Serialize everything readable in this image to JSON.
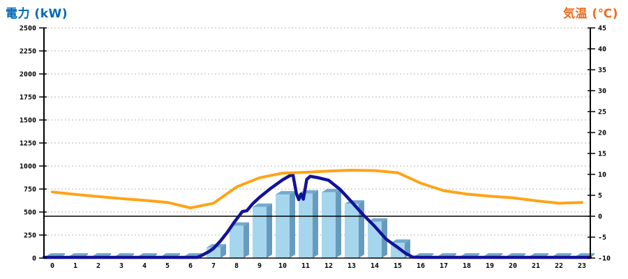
{
  "chart_data": {
    "type": "combo",
    "title_left": "電力 (kW)",
    "title_right": "気温 (℃)",
    "x_labels": [
      "0",
      "1",
      "2",
      "3",
      "4",
      "5",
      "6",
      "7",
      "8",
      "9",
      "10",
      "11",
      "12",
      "13",
      "14",
      "15",
      "16",
      "17",
      "18",
      "19",
      "20",
      "21",
      "22",
      "23"
    ],
    "left_axis": {
      "label": "電力 (kW)",
      "min": 0,
      "max": 2500,
      "step": 250,
      "ticks": [
        "0",
        "250",
        "500",
        "750",
        "1000",
        "1250",
        "1500",
        "1750",
        "2000",
        "2250",
        "2500"
      ]
    },
    "right_axis": {
      "label": "気温 (℃)",
      "min": -10,
      "max": 45,
      "step": 5,
      "ticks": [
        "-10",
        "-5",
        "0",
        "5",
        "10",
        "15",
        "20",
        "25",
        "30",
        "35",
        "40",
        "45"
      ],
      "zero_reference_line": 0
    },
    "grid": {
      "horizontal_dashed": true,
      "follows": "left_axis"
    },
    "legend": "none",
    "series": [
      {
        "name": "power-bars",
        "type": "bar3d",
        "axis": "left",
        "x": [
          0,
          1,
          2,
          3,
          4,
          5,
          6,
          7,
          8,
          9,
          10,
          11,
          12,
          13,
          14,
          15,
          16,
          17,
          18,
          19,
          20,
          21,
          22,
          23
        ],
        "values": [
          15,
          15,
          15,
          15,
          15,
          15,
          15,
          115,
          350,
          555,
          690,
          700,
          715,
          590,
          395,
          165,
          15,
          15,
          15,
          15,
          15,
          15,
          15,
          15
        ]
      },
      {
        "name": "power-line",
        "type": "line",
        "axis": "left",
        "points": [
          [
            -0.36,
            8
          ],
          [
            6.3,
            8
          ],
          [
            6.5,
            30
          ],
          [
            6.8,
            70
          ],
          [
            7,
            105
          ],
          [
            7.3,
            185
          ],
          [
            7.6,
            280
          ],
          [
            7.9,
            390
          ],
          [
            8.1,
            455
          ],
          [
            8.25,
            505
          ],
          [
            8.45,
            515
          ],
          [
            8.7,
            590
          ],
          [
            9,
            660
          ],
          [
            9.5,
            760
          ],
          [
            10,
            850
          ],
          [
            10.3,
            893
          ],
          [
            10.45,
            905
          ],
          [
            10.6,
            700
          ],
          [
            10.7,
            635
          ],
          [
            10.8,
            695
          ],
          [
            10.9,
            640
          ],
          [
            11.05,
            855
          ],
          [
            11.2,
            888
          ],
          [
            11.5,
            875
          ],
          [
            12,
            845
          ],
          [
            12.5,
            745
          ],
          [
            13,
            610
          ],
          [
            13.5,
            470
          ],
          [
            14,
            345
          ],
          [
            14.5,
            205
          ],
          [
            15,
            115
          ],
          [
            15.35,
            50
          ],
          [
            15.65,
            10
          ],
          [
            16,
            8
          ],
          [
            23.36,
            8
          ]
        ]
      },
      {
        "name": "temperature-line",
        "type": "line",
        "axis": "right",
        "x": [
          0,
          1,
          2,
          3,
          4,
          5,
          6,
          7,
          8,
          9,
          10,
          11,
          12,
          13,
          14,
          15,
          16,
          17,
          18,
          19,
          20,
          21,
          22,
          23
        ],
        "values": [
          5.8,
          5.2,
          4.7,
          4.2,
          3.8,
          3.3,
          2.0,
          3.1,
          7.0,
          9.2,
          10.3,
          10.5,
          10.8,
          11.0,
          10.9,
          10.4,
          7.9,
          6.1,
          5.3,
          4.8,
          4.4,
          3.7,
          3.1,
          3.3
        ]
      }
    ],
    "colors": {
      "title_left": "#0068B7",
      "title_right": "#ED6C1E",
      "bar_front": "#A5D6EE",
      "bar_top": "#74AACA",
      "bar_side": "#679BBE",
      "power_line": "#121299",
      "temperature_line": "#FFA318",
      "grid": "#B4B4B4",
      "axis": "#000000",
      "zero_line": "#000000",
      "background": "#FFFFFF"
    }
  }
}
